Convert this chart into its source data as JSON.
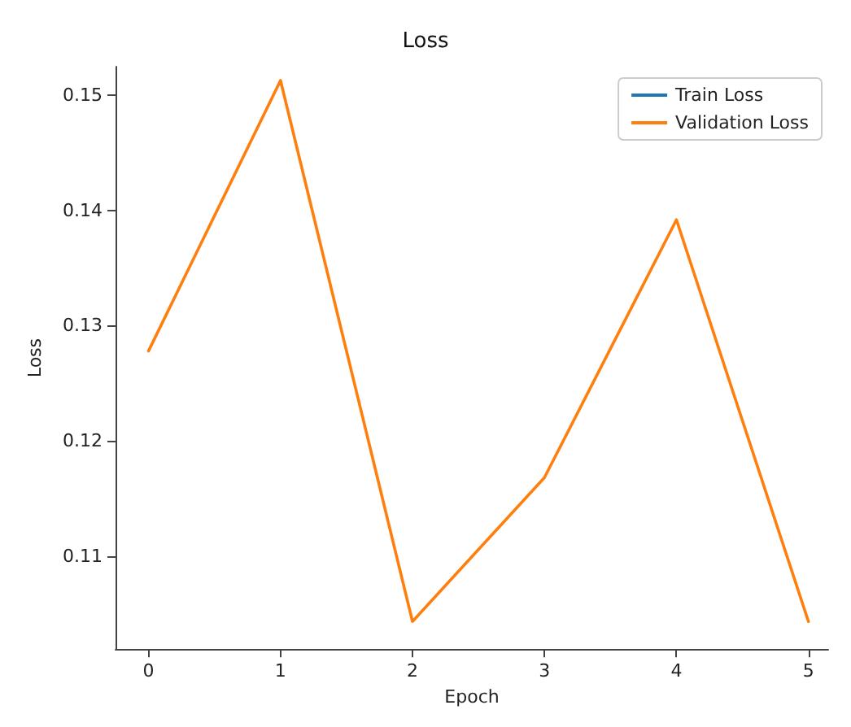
{
  "chart_data": {
    "type": "line",
    "title": "Loss",
    "xlabel": "Epoch",
    "ylabel": "Loss",
    "x": [
      0,
      1,
      2,
      3,
      4,
      5
    ],
    "series": [
      {
        "name": "Train Loss",
        "color": "#1f77b4",
        "values": [
          null,
          null,
          null,
          null,
          null,
          null
        ]
      },
      {
        "name": "Validation Loss",
        "color": "#ff7f0e",
        "values": [
          0.1278,
          0.1513,
          0.1043,
          0.1168,
          0.1392,
          0.1043
        ]
      }
    ],
    "xlim": [
      -0.25,
      5.15
    ],
    "xticks": [
      0,
      1,
      2,
      3,
      4,
      5
    ],
    "ylim": [
      0.1019,
      0.1525
    ],
    "yticks": [
      0.11,
      0.12,
      0.13,
      0.14,
      0.15
    ],
    "grid": false,
    "legend": "top right",
    "marker": "none",
    "line_style": "solid"
  }
}
